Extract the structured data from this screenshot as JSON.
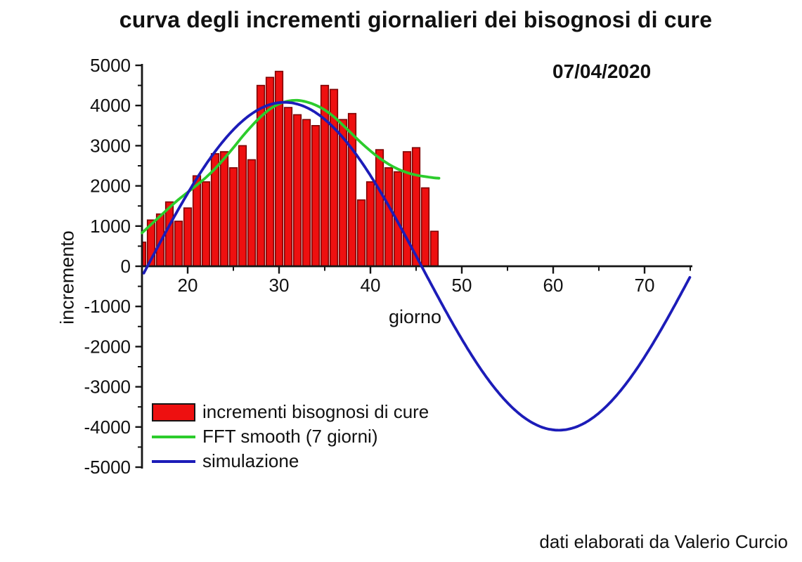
{
  "title": "curva degli incrementi giornalieri dei bisognosi di cure",
  "date_label": "07/04/2020",
  "credit": "dati elaborati da Valerio Curcio",
  "colors": {
    "bar_fill": "#ee1010",
    "bar_border": "#7d0000",
    "fft_smooth": "#2ccc2c",
    "simulation": "#1c1cb8",
    "axis": "#151515",
    "text": "#111111",
    "background": "#ffffff"
  },
  "chart_data": {
    "type": "bar",
    "title": "curva degli incrementi giornalieri dei bisognosi di cure",
    "xlabel": "giorno",
    "ylabel": "incremento",
    "xlim": [
      15,
      75.3
    ],
    "ylim": [
      -5000,
      5000
    ],
    "x_ticks": [
      20,
      30,
      40,
      50,
      60,
      70
    ],
    "x_minor_ticks": [
      25,
      35,
      45,
      55,
      65,
      75
    ],
    "y_ticks": [
      5000,
      4000,
      3000,
      2000,
      1000,
      0,
      -1000,
      -2000,
      -3000,
      -4000,
      -5000
    ],
    "y_minor_step": 500,
    "grid": false,
    "legend_position": "lower-left",
    "series": [
      {
        "name": "incrementi bisognosi di cure",
        "type": "bar",
        "color": "#ee1010",
        "border_color": "#7d0000",
        "x": [
          15,
          16,
          17,
          18,
          19,
          20,
          21,
          22,
          23,
          24,
          25,
          26,
          27,
          28,
          29,
          30,
          31,
          32,
          33,
          34,
          35,
          36,
          37,
          38,
          39,
          40,
          41,
          42,
          43,
          44,
          45,
          46,
          47
        ],
        "values": [
          600,
          1150,
          1300,
          1600,
          1120,
          1450,
          2250,
          2100,
          2800,
          2850,
          2450,
          3000,
          2650,
          4500,
          4700,
          4850,
          3950,
          3770,
          3650,
          3500,
          4500,
          4400,
          3650,
          3800,
          1650,
          2100,
          2900,
          2450,
          2350,
          2850,
          2950,
          1950,
          870
        ]
      },
      {
        "name": "FFT smooth (7 giorni)",
        "type": "line",
        "color": "#2ccc2c",
        "points": [
          [
            15,
            830
          ],
          [
            16,
            1040
          ],
          [
            17,
            1250
          ],
          [
            18,
            1460
          ],
          [
            19,
            1660
          ],
          [
            20,
            1840
          ],
          [
            21,
            2020
          ],
          [
            22,
            2210
          ],
          [
            23,
            2430
          ],
          [
            24,
            2680
          ],
          [
            25,
            2950
          ],
          [
            26,
            3230
          ],
          [
            27,
            3490
          ],
          [
            28,
            3720
          ],
          [
            29,
            3910
          ],
          [
            30,
            4040
          ],
          [
            31,
            4110
          ],
          [
            32,
            4130
          ],
          [
            33,
            4090
          ],
          [
            34,
            4010
          ],
          [
            35,
            3890
          ],
          [
            36,
            3720
          ],
          [
            37,
            3510
          ],
          [
            38,
            3290
          ],
          [
            39,
            3070
          ],
          [
            40,
            2870
          ],
          [
            41,
            2690
          ],
          [
            42,
            2540
          ],
          [
            43,
            2420
          ],
          [
            44,
            2330
          ],
          [
            45,
            2270
          ],
          [
            46,
            2230
          ],
          [
            47,
            2200
          ],
          [
            47.5,
            2190
          ]
        ]
      },
      {
        "name": "simulazione",
        "type": "line",
        "color": "#1c1cb8",
        "model": {
          "kind": "sine",
          "amplitude": 4080,
          "zero_day": 15.6,
          "period_days": 60,
          "x_start": 15.2,
          "x_end": 75.15
        }
      }
    ]
  }
}
